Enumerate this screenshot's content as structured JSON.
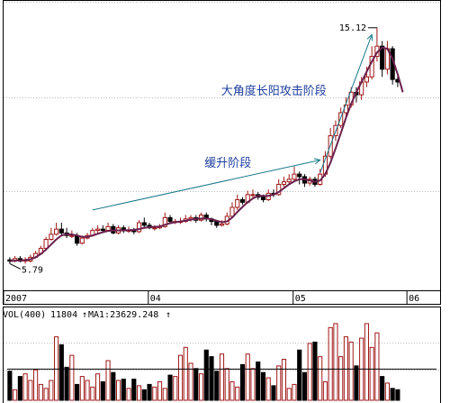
{
  "chart_data": [
    {
      "type": "candlestick",
      "title": "",
      "x_tick_labels": [
        "2007",
        "04",
        "05",
        "06"
      ],
      "y_range": [
        5.0,
        15.5
      ],
      "high_label": "15.12",
      "low_label": "5.79",
      "grid": "horizontal dotted",
      "series": [
        {
          "name": "",
          "x": [
            0,
            1,
            2,
            3,
            4,
            5,
            6,
            7,
            8,
            9,
            10,
            11,
            12,
            13,
            14,
            15,
            16,
            17,
            18,
            19,
            20,
            21,
            22,
            23,
            24,
            25,
            26,
            27,
            28,
            29,
            30,
            31,
            32,
            33,
            34,
            35,
            36,
            37,
            38,
            39,
            40,
            41,
            42,
            43,
            44,
            45,
            46,
            47,
            48,
            49,
            50,
            51,
            52,
            53,
            54,
            55,
            56,
            57,
            58,
            59,
            60,
            61,
            62,
            63,
            64,
            65,
            66,
            67,
            68,
            69,
            70,
            71,
            72,
            73,
            74,
            75,
            76,
            77,
            78,
            79,
            80,
            81,
            82
          ],
          "open": [
            6.05,
            6.02,
            6.1,
            6.0,
            6.0,
            6.15,
            6.3,
            6.5,
            6.85,
            7.05,
            7.25,
            7.1,
            7.0,
            7.0,
            6.7,
            6.9,
            7.0,
            7.2,
            7.25,
            7.2,
            7.35,
            7.1,
            7.3,
            7.2,
            7.2,
            7.15,
            7.5,
            7.4,
            7.3,
            7.3,
            7.35,
            7.7,
            7.55,
            7.55,
            7.55,
            7.65,
            7.7,
            7.6,
            7.8,
            7.65,
            7.55,
            7.4,
            7.45,
            7.75,
            8.1,
            8.4,
            8.3,
            8.6,
            8.6,
            8.5,
            8.4,
            8.65,
            8.6,
            9.0,
            9.1,
            9.2,
            9.4,
            9.3,
            9.05,
            9.2,
            9.0,
            9.4,
            10.1,
            10.9,
            11.3,
            11.8,
            12.1,
            12.6,
            12.5,
            13.0,
            13.2,
            14.0,
            14.4,
            13.5,
            14.3,
            13.1,
            null,
            null,
            null,
            null,
            null,
            null,
            null
          ],
          "close": [
            6.0,
            6.1,
            6.0,
            6.05,
            6.15,
            6.3,
            6.5,
            6.85,
            7.05,
            7.25,
            7.1,
            7.0,
            7.0,
            6.7,
            6.9,
            7.0,
            7.2,
            7.25,
            7.2,
            7.35,
            7.1,
            7.3,
            7.2,
            7.2,
            7.15,
            7.5,
            7.4,
            7.3,
            7.3,
            7.35,
            7.7,
            7.55,
            7.55,
            7.55,
            7.65,
            7.7,
            7.6,
            7.8,
            7.65,
            7.55,
            7.4,
            7.45,
            7.75,
            8.1,
            8.4,
            8.3,
            8.6,
            8.6,
            8.5,
            8.4,
            8.65,
            8.6,
            9.0,
            9.1,
            9.2,
            9.4,
            9.3,
            9.05,
            9.2,
            9.0,
            9.4,
            10.1,
            10.9,
            11.3,
            11.8,
            12.1,
            12.6,
            12.5,
            13.0,
            13.2,
            14.0,
            14.4,
            13.5,
            14.3,
            13.1,
            13.0,
            null,
            null,
            null,
            null,
            null,
            null,
            null
          ],
          "high": [
            6.15,
            6.2,
            6.2,
            6.15,
            6.25,
            6.4,
            6.6,
            6.95,
            7.3,
            7.5,
            7.5,
            7.3,
            7.2,
            7.1,
            7.0,
            7.1,
            7.3,
            7.4,
            7.4,
            7.5,
            7.45,
            7.4,
            7.4,
            7.35,
            7.3,
            7.6,
            7.7,
            7.5,
            7.4,
            7.45,
            7.9,
            7.8,
            7.65,
            7.7,
            7.8,
            7.8,
            7.8,
            7.9,
            7.9,
            7.7,
            7.6,
            7.6,
            7.9,
            8.3,
            8.6,
            8.5,
            8.75,
            8.8,
            8.7,
            8.6,
            8.8,
            8.8,
            9.2,
            9.3,
            9.4,
            9.7,
            9.5,
            9.4,
            9.3,
            9.3,
            9.6,
            10.3,
            11.2,
            11.5,
            12.0,
            12.4,
            12.8,
            12.8,
            13.2,
            13.6,
            14.4,
            15.12,
            14.6,
            14.6,
            14.4,
            13.3,
            null,
            null,
            null,
            null,
            null,
            null,
            null
          ],
          "low": [
            5.9,
            5.95,
            5.95,
            5.9,
            5.95,
            6.1,
            6.25,
            6.4,
            6.8,
            7.0,
            7.0,
            6.9,
            6.9,
            6.6,
            6.65,
            6.85,
            6.95,
            7.1,
            7.1,
            7.15,
            7.05,
            7.05,
            7.1,
            7.1,
            7.05,
            7.1,
            7.3,
            7.25,
            7.2,
            7.25,
            7.3,
            7.45,
            7.45,
            7.45,
            7.5,
            7.55,
            7.5,
            7.55,
            7.55,
            7.4,
            7.3,
            7.35,
            7.4,
            7.7,
            8.0,
            8.2,
            8.25,
            8.45,
            8.4,
            8.3,
            8.35,
            8.5,
            8.55,
            8.9,
            9.0,
            9.1,
            9.0,
            8.9,
            8.95,
            8.9,
            8.95,
            9.3,
            10.0,
            10.7,
            11.2,
            11.6,
            12.0,
            12.2,
            12.3,
            12.8,
            13.1,
            13.8,
            13.2,
            13.3,
            12.9,
            12.8,
            null,
            null,
            null,
            null,
            null,
            null,
            null
          ]
        }
      ],
      "ma_line": {
        "name": "",
        "values": [
          6.0,
          6.02,
          6.03,
          6.04,
          6.07,
          6.15,
          6.28,
          6.45,
          6.65,
          6.85,
          7.0,
          7.05,
          7.04,
          7.0,
          6.95,
          6.95,
          7.0,
          7.07,
          7.13,
          7.18,
          7.2,
          7.2,
          7.2,
          7.21,
          7.22,
          7.25,
          7.3,
          7.33,
          7.34,
          7.35,
          7.42,
          7.48,
          7.52,
          7.55,
          7.58,
          7.62,
          7.65,
          7.66,
          7.67,
          7.64,
          7.58,
          7.52,
          7.55,
          7.7,
          7.92,
          8.12,
          8.3,
          8.45,
          8.55,
          8.55,
          8.55,
          8.6,
          8.7,
          8.85,
          9.0,
          9.12,
          9.2,
          9.2,
          9.15,
          9.1,
          9.15,
          9.4,
          9.85,
          10.4,
          11.0,
          11.6,
          12.15,
          12.6,
          13.0,
          13.4,
          13.8,
          14.15,
          14.35,
          14.3,
          13.9,
          13.3,
          12.6
        ]
      },
      "annotations": [
        {
          "text": "缓升阶段"
        },
        {
          "text": "大角度长阳攻击阶段"
        }
      ]
    },
    {
      "type": "bar",
      "title": "",
      "indicator_label": "VOL(400)",
      "vol_value": "11804",
      "ma_label": "MA1:23629.248",
      "values": [
        22000,
        8000,
        18000,
        20000,
        15000,
        23000,
        12000,
        9000,
        15000,
        48000,
        42000,
        25000,
        34000,
        12000,
        18000,
        15000,
        10000,
        20000,
        14000,
        30000,
        21000,
        15000,
        16000,
        9000,
        16000,
        11000,
        8000,
        12000,
        10000,
        14000,
        9000,
        19000,
        18000,
        34000,
        40000,
        28000,
        24000,
        20000,
        38000,
        33000,
        22000,
        35000,
        24000,
        14000,
        10000,
        27000,
        35000,
        24000,
        29000,
        21000,
        17000,
        11000,
        26000,
        31000,
        9000,
        12000,
        38000,
        21000,
        43000,
        44000,
        33000,
        14000,
        55000,
        58000,
        33000,
        48000,
        44000,
        26000,
        47000,
        58000,
        40000,
        51000,
        18000,
        13000,
        9000,
        8000,
        null,
        null,
        null,
        null,
        null,
        null,
        null
      ],
      "ma_value": 23629.248
    }
  ]
}
